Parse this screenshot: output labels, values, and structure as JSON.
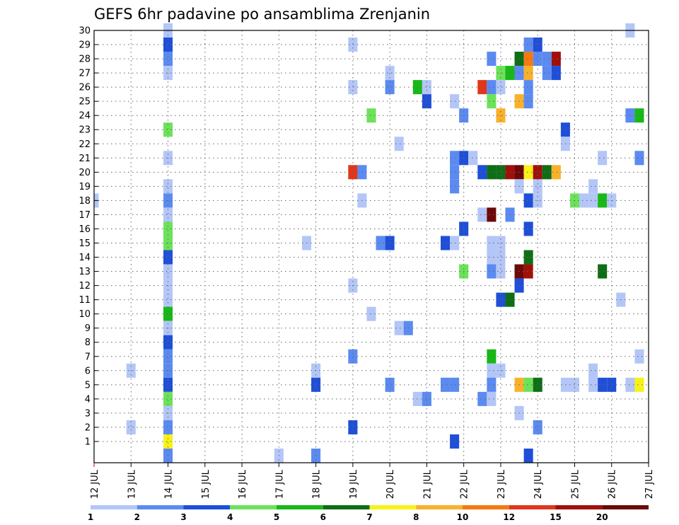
{
  "chart_data": {
    "type": "heatmap",
    "title": "GEFS 6hr padavine po ansamblima Zrenjanin",
    "x_tick_labels": [
      "12 JUL",
      "13 JUL",
      "14 JUL",
      "15 JUL",
      "16 JUL",
      "17 JUL",
      "18 JUL",
      "19 JUL",
      "20 JUL",
      "21 JUL",
      "22 JUL",
      "23 JUL",
      "24 JUL",
      "25 JUL",
      "26 JUL",
      "27 JUL"
    ],
    "y_tick_labels": [
      "1",
      "2",
      "3",
      "4",
      "5",
      "6",
      "7",
      "8",
      "9",
      "10",
      "11",
      "12",
      "13",
      "14",
      "15",
      "16",
      "17",
      "18",
      "19",
      "20",
      "21",
      "22",
      "23",
      "24",
      "25",
      "26",
      "27",
      "28",
      "29",
      "30"
    ],
    "x_range_days": [
      12,
      27
    ],
    "y_range": [
      0,
      30
    ],
    "grid": true,
    "colorbar": {
      "labels": [
        "1",
        "2",
        "3",
        "4",
        "5",
        "6",
        "7",
        "8",
        "10",
        "12",
        "15",
        "20"
      ],
      "thresholds": [
        1,
        2,
        3,
        4,
        5,
        6,
        7,
        8,
        10,
        12,
        15,
        20
      ],
      "colors": [
        "#b3c6f7",
        "#5b8af0",
        "#1f4fd8",
        "#6ce25a",
        "#18b818",
        "#0e6e16",
        "#f7f21a",
        "#f9b12c",
        "#f57a10",
        "#e0361b",
        "#a0100a",
        "#6e0808"
      ]
    },
    "cells": [
      [
        14.0,
        30,
        0
      ],
      [
        14.0,
        29,
        2
      ],
      [
        14.0,
        28,
        1
      ],
      [
        14.0,
        27,
        0
      ],
      [
        14.0,
        23,
        3
      ],
      [
        14.0,
        21,
        0
      ],
      [
        14.0,
        19,
        0
      ],
      [
        14.0,
        18,
        1
      ],
      [
        14.0,
        17,
        0
      ],
      [
        14.0,
        16,
        3
      ],
      [
        14.0,
        15,
        3
      ],
      [
        14.0,
        14,
        2
      ],
      [
        14.0,
        13,
        0
      ],
      [
        14.0,
        12,
        0
      ],
      [
        14.0,
        11,
        0
      ],
      [
        14.0,
        10,
        4
      ],
      [
        14.0,
        9,
        0
      ],
      [
        14.0,
        8,
        2
      ],
      [
        14.0,
        7,
        1
      ],
      [
        14.0,
        6,
        1
      ],
      [
        14.0,
        5,
        2
      ],
      [
        14.0,
        4,
        3
      ],
      [
        14.0,
        3,
        0
      ],
      [
        14.0,
        2,
        1
      ],
      [
        14.0,
        1,
        6
      ],
      [
        14.0,
        0,
        1
      ],
      [
        12.0,
        18,
        0
      ],
      [
        13.0,
        6,
        0
      ],
      [
        13.0,
        2,
        0
      ],
      [
        17.0,
        0,
        0
      ],
      [
        18.0,
        6,
        0
      ],
      [
        18.0,
        5,
        2
      ],
      [
        18.0,
        0,
        1
      ],
      [
        17.75,
        15,
        0
      ],
      [
        19.0,
        29,
        0
      ],
      [
        19.0,
        26,
        0
      ],
      [
        19.0,
        20,
        9
      ],
      [
        19.25,
        20,
        1
      ],
      [
        19.25,
        18,
        0
      ],
      [
        19.0,
        12,
        0
      ],
      [
        19.0,
        7,
        1
      ],
      [
        19.0,
        2,
        2
      ],
      [
        19.5,
        24,
        3
      ],
      [
        19.5,
        10,
        0
      ],
      [
        19.75,
        15,
        1
      ],
      [
        20.0,
        15,
        2
      ],
      [
        20.0,
        27,
        0
      ],
      [
        20.0,
        26,
        1
      ],
      [
        20.0,
        5,
        1
      ],
      [
        20.25,
        22,
        0
      ],
      [
        20.25,
        9,
        0
      ],
      [
        20.5,
        9,
        1
      ],
      [
        20.75,
        26,
        4
      ],
      [
        21.0,
        26,
        0
      ],
      [
        21.0,
        25,
        2
      ],
      [
        20.75,
        4,
        0
      ],
      [
        21.0,
        4,
        1
      ],
      [
        21.5,
        15,
        2
      ],
      [
        21.75,
        15,
        0
      ],
      [
        21.5,
        5,
        1
      ],
      [
        21.75,
        5,
        1
      ],
      [
        21.75,
        25,
        0
      ],
      [
        21.75,
        21,
        1
      ],
      [
        21.75,
        20,
        1
      ],
      [
        21.75,
        19,
        1
      ],
      [
        21.75,
        1,
        2
      ],
      [
        22.0,
        24,
        1
      ],
      [
        22.0,
        21,
        2
      ],
      [
        22.0,
        16,
        2
      ],
      [
        22.0,
        13,
        3
      ],
      [
        22.25,
        21,
        0
      ],
      [
        22.5,
        26,
        9
      ],
      [
        22.5,
        20,
        2
      ],
      [
        22.5,
        17,
        0
      ],
      [
        22.5,
        4,
        1
      ],
      [
        22.75,
        28,
        1
      ],
      [
        22.75,
        26,
        1
      ],
      [
        22.75,
        25,
        3
      ],
      [
        22.75,
        20,
        5
      ],
      [
        22.75,
        17,
        11
      ],
      [
        22.75,
        15,
        0
      ],
      [
        22.75,
        14,
        0
      ],
      [
        22.75,
        13,
        1
      ],
      [
        22.75,
        7,
        4
      ],
      [
        22.75,
        6,
        0
      ],
      [
        22.75,
        5,
        1
      ],
      [
        22.75,
        4,
        0
      ],
      [
        23.0,
        27,
        3
      ],
      [
        23.0,
        26,
        0
      ],
      [
        23.0,
        24,
        7
      ],
      [
        23.0,
        20,
        5
      ],
      [
        23.0,
        15,
        0
      ],
      [
        23.0,
        14,
        0
      ],
      [
        23.0,
        13,
        0
      ],
      [
        23.0,
        11,
        2
      ],
      [
        23.0,
        6,
        0
      ],
      [
        23.25,
        27,
        4
      ],
      [
        23.25,
        20,
        10
      ],
      [
        23.25,
        17,
        1
      ],
      [
        23.25,
        11,
        5
      ],
      [
        23.5,
        28,
        5
      ],
      [
        23.5,
        27,
        1
      ],
      [
        23.5,
        25,
        7
      ],
      [
        23.5,
        20,
        11
      ],
      [
        23.5,
        19,
        0
      ],
      [
        23.5,
        13,
        11
      ],
      [
        23.5,
        12,
        2
      ],
      [
        23.5,
        5,
        7
      ],
      [
        23.5,
        3,
        0
      ],
      [
        23.75,
        29,
        1
      ],
      [
        23.75,
        28,
        8
      ],
      [
        23.75,
        27,
        7
      ],
      [
        23.75,
        26,
        1
      ],
      [
        23.75,
        25,
        1
      ],
      [
        23.75,
        20,
        6
      ],
      [
        23.75,
        18,
        2
      ],
      [
        23.75,
        16,
        2
      ],
      [
        23.75,
        14,
        5
      ],
      [
        23.75,
        13,
        10
      ],
      [
        23.75,
        5,
        3
      ],
      [
        23.75,
        0,
        2
      ],
      [
        24.0,
        29,
        2
      ],
      [
        24.0,
        28,
        1
      ],
      [
        24.0,
        20,
        10
      ],
      [
        24.0,
        19,
        0
      ],
      [
        24.0,
        18,
        0
      ],
      [
        24.0,
        5,
        5
      ],
      [
        24.0,
        2,
        1
      ],
      [
        24.25,
        28,
        1
      ],
      [
        24.25,
        27,
        1
      ],
      [
        24.25,
        20,
        5
      ],
      [
        24.5,
        28,
        10
      ],
      [
        24.5,
        27,
        2
      ],
      [
        24.5,
        20,
        7
      ],
      [
        24.75,
        23,
        2
      ],
      [
        24.75,
        22,
        0
      ],
      [
        24.75,
        5,
        0
      ],
      [
        25.0,
        18,
        3
      ],
      [
        25.0,
        5,
        0
      ],
      [
        25.25,
        18,
        0
      ],
      [
        25.5,
        18,
        0
      ],
      [
        25.5,
        19,
        0
      ],
      [
        25.5,
        6,
        0
      ],
      [
        25.5,
        5,
        0
      ],
      [
        25.75,
        21,
        0
      ],
      [
        25.75,
        18,
        4
      ],
      [
        25.75,
        13,
        5
      ],
      [
        25.75,
        5,
        2
      ],
      [
        26.0,
        18,
        0
      ],
      [
        26.0,
        5,
        2
      ],
      [
        26.25,
        11,
        0
      ],
      [
        26.5,
        30,
        0
      ],
      [
        26.5,
        24,
        1
      ],
      [
        26.5,
        5,
        0
      ],
      [
        26.75,
        24,
        4
      ],
      [
        26.75,
        21,
        1
      ],
      [
        26.75,
        7,
        0
      ],
      [
        26.75,
        5,
        6
      ]
    ]
  }
}
